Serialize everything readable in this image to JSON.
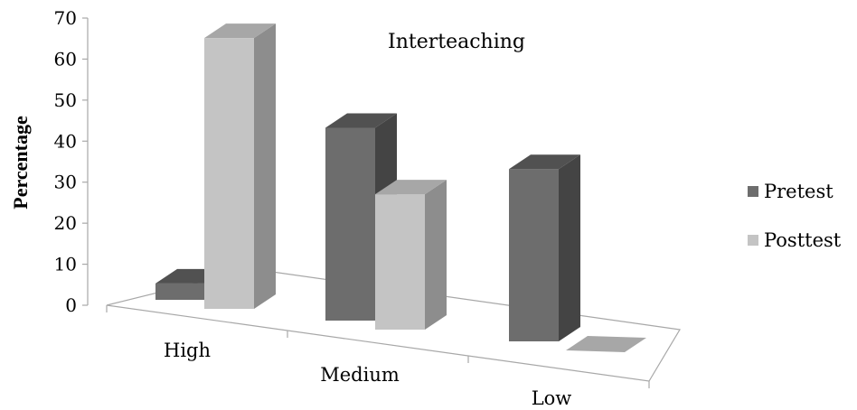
{
  "chart_data": {
    "type": "bar",
    "title": "Interteaching",
    "ylabel": "Percentage",
    "xlabel": "",
    "ylim": [
      0,
      70
    ],
    "yticks": [
      "0",
      "10",
      "20",
      "30",
      "40",
      "50",
      "60",
      "70"
    ],
    "categories": [
      "High",
      "Medium",
      "Low"
    ],
    "series": [
      {
        "name": "Pretest",
        "values": [
          4,
          47,
          42
        ],
        "color": "#6d6d6d"
      },
      {
        "name": "Posttest",
        "values": [
          66,
          33,
          1
        ],
        "color": "#c4c4c4"
      }
    ],
    "legend_position": "right",
    "grid": false,
    "style": "3d-perspective"
  }
}
